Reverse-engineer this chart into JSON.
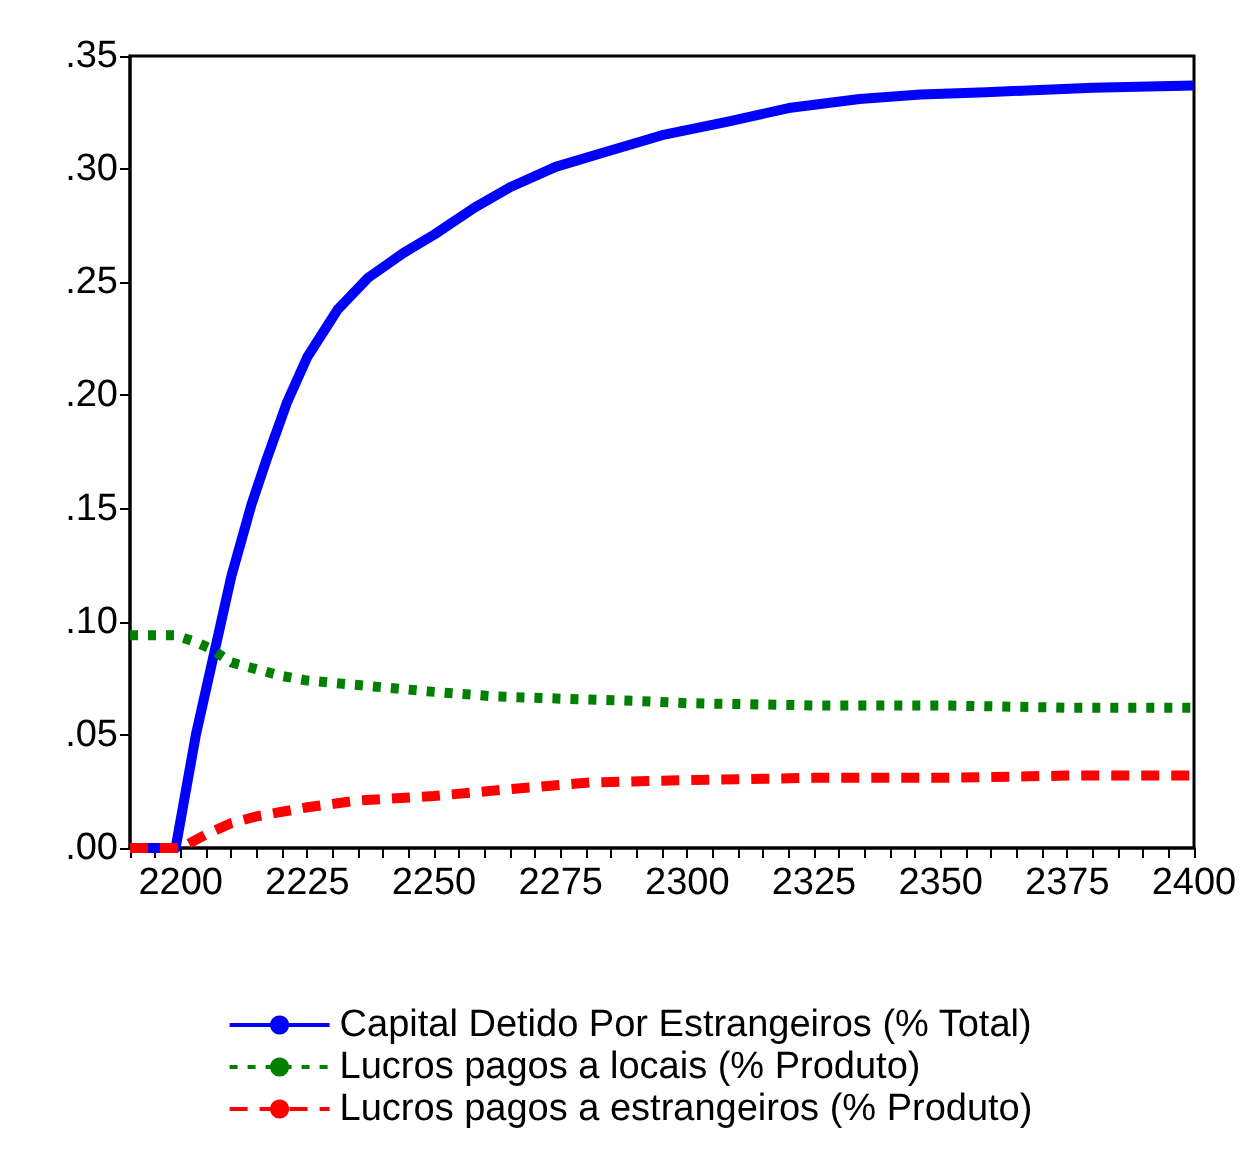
{
  "chart_data": {
    "type": "line",
    "xlim": [
      2190,
      2400
    ],
    "xticks": [
      {
        "value": 2190,
        "label": null
      },
      {
        "value": 2195,
        "label": null
      },
      2200,
      {
        "value": 2205,
        "label": null
      },
      {
        "value": 2210,
        "label": null
      },
      {
        "value": 2215,
        "label": null
      },
      {
        "value": 2220,
        "label": null
      },
      2225,
      {
        "value": 2230,
        "label": null
      },
      {
        "value": 2235,
        "label": null
      },
      {
        "value": 2240,
        "label": null
      },
      {
        "value": 2245,
        "label": null
      },
      2250,
      {
        "value": 2255,
        "label": null
      },
      {
        "value": 2260,
        "label": null
      },
      {
        "value": 2265,
        "label": null
      },
      {
        "value": 2270,
        "label": null
      },
      2275,
      {
        "value": 2280,
        "label": null
      },
      {
        "value": 2285,
        "label": null
      },
      {
        "value": 2290,
        "label": null
      },
      {
        "value": 2295,
        "label": null
      },
      2300,
      {
        "value": 2305,
        "label": null
      },
      {
        "value": 2310,
        "label": null
      },
      {
        "value": 2315,
        "label": null
      },
      {
        "value": 2320,
        "label": null
      },
      2325,
      {
        "value": 2330,
        "label": null
      },
      {
        "value": 2335,
        "label": null
      },
      {
        "value": 2340,
        "label": null
      },
      {
        "value": 2345,
        "label": null
      },
      2350,
      {
        "value": 2355,
        "label": null
      },
      {
        "value": 2360,
        "label": null
      },
      {
        "value": 2365,
        "label": null
      },
      {
        "value": 2370,
        "label": null
      },
      2375,
      {
        "value": 2380,
        "label": null
      },
      {
        "value": 2385,
        "label": null
      },
      {
        "value": 2390,
        "label": null
      },
      {
        "value": 2395,
        "label": null
      },
      2400
    ],
    "ylim": [
      0,
      0.35
    ],
    "yticks": [
      {
        "value": 0,
        "label": ".00"
      },
      {
        "value": 0.05,
        "label": ".05"
      },
      {
        "value": 0.1,
        "label": ".10"
      },
      {
        "value": 0.15,
        "label": ".15"
      },
      {
        "value": 0.2,
        "label": ".20"
      },
      {
        "value": 0.25,
        "label": ".25"
      },
      {
        "value": 0.3,
        "label": ".30"
      },
      {
        "value": 0.35,
        "label": ".35"
      }
    ],
    "grid": false,
    "legend": "bottom",
    "marker": "none",
    "series": [
      {
        "name": "Capital Detido Por Estrangeiros (% Total)",
        "color": "#0000ff",
        "line_style": "solid",
        "x": [
          2190,
          2199,
          2203,
          2207,
          2210,
          2214,
          2217,
          2221,
          2225,
          2231,
          2237,
          2244,
          2250,
          2258,
          2265,
          2274,
          2283,
          2295,
          2308,
          2320,
          2334,
          2346,
          2359,
          2380,
          2400
        ],
        "values": [
          0,
          0,
          0.05,
          0.09,
          0.12,
          0.152,
          0.172,
          0.197,
          0.217,
          0.238,
          0.252,
          0.263,
          0.271,
          0.283,
          0.292,
          0.301,
          0.307,
          0.315,
          0.321,
          0.327,
          0.331,
          0.333,
          0.334,
          0.336,
          0.337
        ]
      },
      {
        "name": "Lucros pagos a locais (% Produto)",
        "color": "#008000",
        "line_style": "dotted",
        "x": [
          2190,
          2199,
          2203,
          2206,
          2210,
          2215,
          2220,
          2225,
          2235,
          2250,
          2262,
          2275,
          2290,
          2300,
          2325,
          2350,
          2375,
          2400
        ],
        "values": [
          0.094,
          0.094,
          0.091,
          0.088,
          0.082,
          0.079,
          0.076,
          0.074,
          0.072,
          0.069,
          0.067,
          0.066,
          0.065,
          0.064,
          0.063,
          0.063,
          0.062,
          0.062
        ]
      },
      {
        "name": "Lucros pagos a estrangeiros (% Produto)",
        "color": "#ff0000",
        "line_style": "dashed",
        "x": [
          2190,
          2200,
          2205,
          2210,
          2215,
          2220,
          2225,
          2235,
          2250,
          2265,
          2281,
          2300,
          2325,
          2350,
          2375,
          2400
        ],
        "values": [
          0,
          0,
          0.006,
          0.011,
          0.014,
          0.016,
          0.018,
          0.021,
          0.023,
          0.026,
          0.029,
          0.03,
          0.031,
          0.031,
          0.032,
          0.032
        ]
      }
    ]
  }
}
